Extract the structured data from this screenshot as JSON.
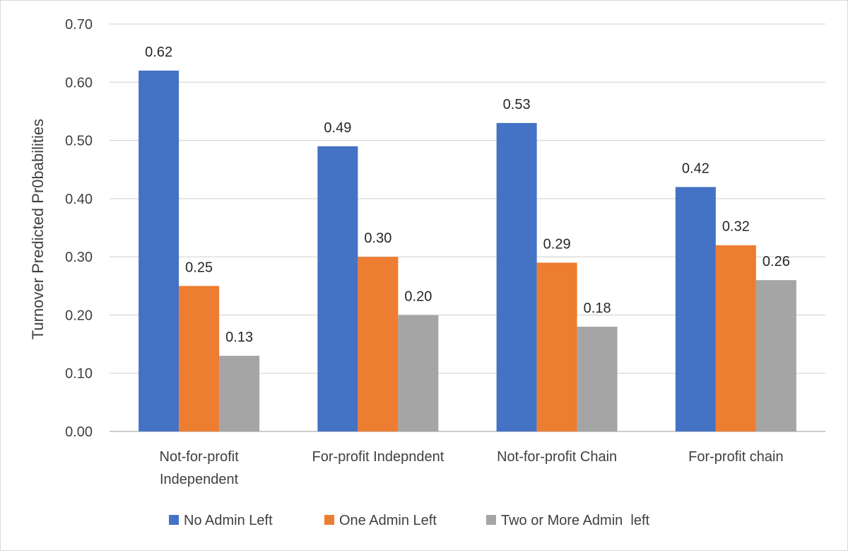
{
  "chart_data": {
    "type": "bar",
    "title": "",
    "xlabel": "",
    "ylabel": "Turnover Predicted Pr0babilities",
    "ylim": [
      0,
      0.7
    ],
    "yticks": [
      "0.00",
      "0.10",
      "0.20",
      "0.30",
      "0.40",
      "0.50",
      "0.60",
      "0.70"
    ],
    "grid": true,
    "legend_position": "bottom",
    "categories": [
      [
        "Not-for-profit",
        "Independent"
      ],
      [
        "For-profit Indepndent"
      ],
      [
        "Not-for-profit Chain"
      ],
      [
        "For-profit chain"
      ]
    ],
    "series": [
      {
        "name": "No Admin Left",
        "color": "#4472C4",
        "values": [
          0.62,
          0.49,
          0.53,
          0.42
        ],
        "labels": [
          "0.62",
          "0.49",
          "0.53",
          "0.42"
        ]
      },
      {
        "name": "One Admin Left",
        "color": "#ED7D31",
        "values": [
          0.25,
          0.3,
          0.29,
          0.32
        ],
        "labels": [
          "0.25",
          "0.30",
          "0.29",
          "0.32"
        ]
      },
      {
        "name": "Two or More Admin  left",
        "color": "#A5A5A5",
        "values": [
          0.13,
          0.2,
          0.18,
          0.26
        ],
        "labels": [
          "0.13",
          "0.20",
          "0.18",
          "0.26"
        ]
      }
    ]
  }
}
